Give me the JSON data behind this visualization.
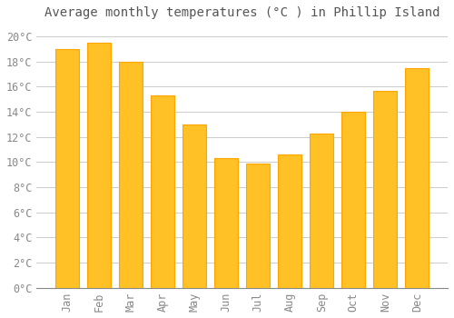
{
  "months": [
    "Jan",
    "Feb",
    "Mar",
    "Apr",
    "May",
    "Jun",
    "Jul",
    "Aug",
    "Sep",
    "Oct",
    "Nov",
    "Dec"
  ],
  "values": [
    19.0,
    19.5,
    18.0,
    15.3,
    13.0,
    10.3,
    9.9,
    10.6,
    12.3,
    14.0,
    15.7,
    17.5
  ],
  "bar_color_face": "#FFC125",
  "bar_color_edge": "#FFA500",
  "title": "Average monthly temperatures (°C ) in Phillip Island",
  "ylim": [
    0,
    21
  ],
  "yticks": [
    0,
    2,
    4,
    6,
    8,
    10,
    12,
    14,
    16,
    18,
    20
  ],
  "background_color": "#FFFFFF",
  "grid_color": "#CCCCCC",
  "title_fontsize": 10,
  "tick_fontsize": 8.5,
  "tick_color": "#888888",
  "title_color": "#555555"
}
